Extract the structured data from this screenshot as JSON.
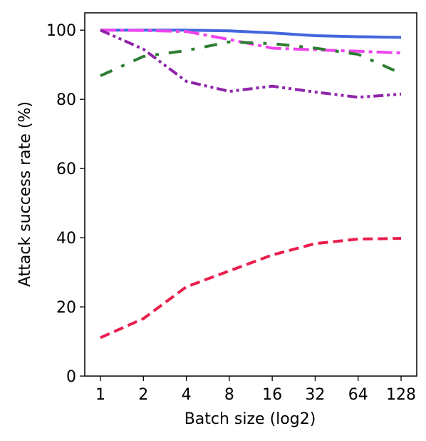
{
  "chart_data": {
    "type": "line",
    "title": "",
    "xlabel": "Batch size (log2)",
    "ylabel": "Attack success rate (%)",
    "categories": [
      "1",
      "2",
      "4",
      "8",
      "16",
      "32",
      "64",
      "128"
    ],
    "x_scale": "log2",
    "ylim": [
      0,
      105
    ],
    "yticks": [
      0,
      20,
      40,
      60,
      80,
      100
    ],
    "grid": false,
    "legend": "none",
    "series": [
      {
        "values": [
          100,
          100,
          100,
          99.8,
          99.2,
          98.4,
          98.1,
          97.9
        ],
        "color": "#4466dd",
        "linestyle": "solid"
      },
      {
        "values": [
          100,
          99.9,
          99.6,
          97.3,
          94.8,
          94.3,
          93.9,
          93.4
        ],
        "color": "#ee44ee",
        "linestyle": "dashdot"
      },
      {
        "values": [
          86.8,
          92.4,
          94.1,
          96.6,
          96.1,
          94.8,
          93.0,
          87.5
        ],
        "color": "#2e7d32",
        "linestyle": "dashdotted-sparse"
      },
      {
        "values": [
          100,
          94.5,
          85.2,
          82.3,
          83.8,
          82.1,
          80.6,
          81.5
        ],
        "color": "#8e24aa",
        "linestyle": "dashdotdot"
      },
      {
        "values": [
          11.1,
          16.6,
          25.8,
          30.4,
          35.0,
          38.3,
          39.6,
          39.8
        ],
        "color": "#e91e4e",
        "linestyle": "dashed"
      }
    ]
  }
}
